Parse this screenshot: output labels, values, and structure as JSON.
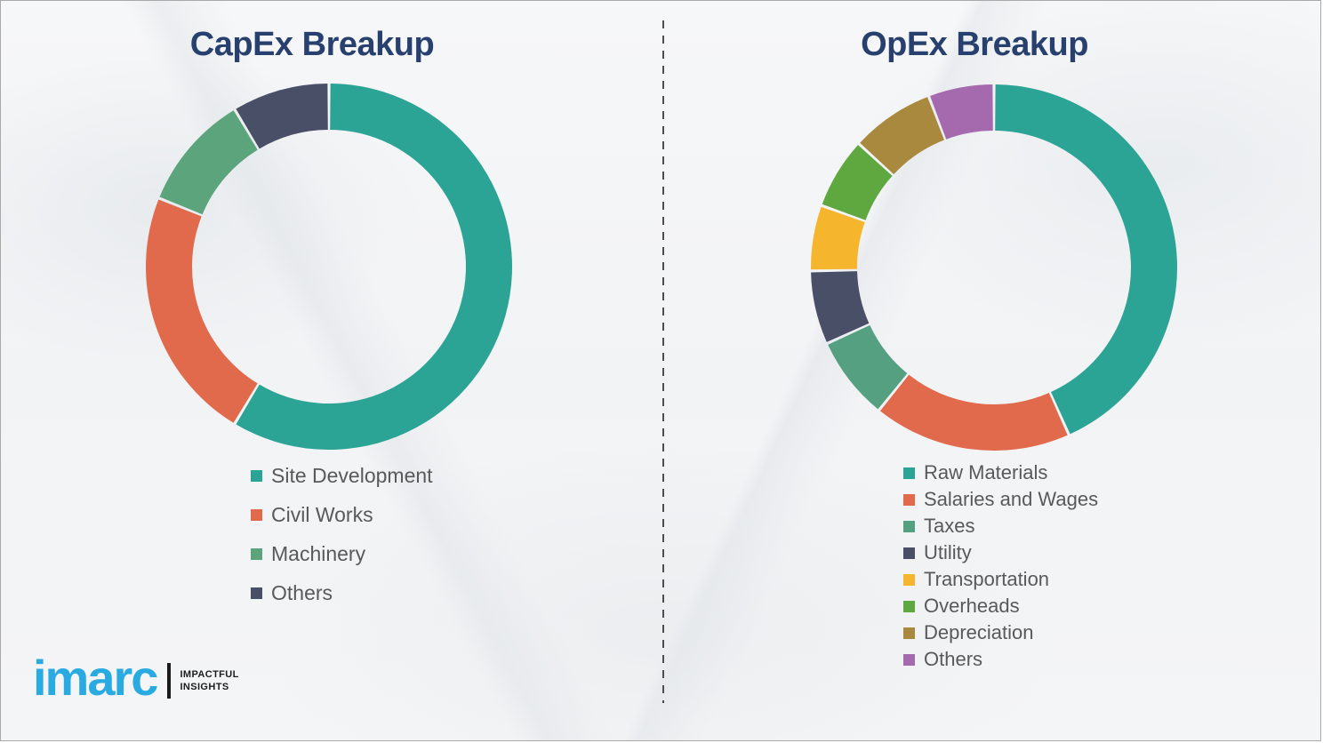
{
  "chart_data": [
    {
      "type": "pie",
      "variant": "donut",
      "title": "CapEx Breakup",
      "labels": [
        "Site Development",
        "Civil Works",
        "Machinery",
        "Others"
      ],
      "values": [
        58.6,
        22.5,
        10.3,
        8.6
      ],
      "colors": [
        "#2ba495",
        "#e06a4b",
        "#5ba47c",
        "#4a4f68"
      ],
      "start_angle_deg": 0,
      "direction": "clockwise",
      "data_labels": false,
      "legend_position": "below-left"
    },
    {
      "type": "pie",
      "variant": "donut",
      "title": "OpEx Breakup",
      "labels": [
        "Raw Materials",
        "Salaries and Wages",
        "Taxes",
        "Utility",
        "Transportation",
        "Overheads",
        "Depreciation",
        "Others"
      ],
      "values": [
        43.3,
        17.5,
        7.4,
        6.5,
        5.8,
        6.3,
        7.4,
        5.8
      ],
      "colors": [
        "#2ba495",
        "#e06a4b",
        "#55a081",
        "#4a4f68",
        "#f5b62e",
        "#5fa83f",
        "#a8893e",
        "#a46aad"
      ],
      "start_angle_deg": 0,
      "direction": "clockwise",
      "data_labels": false,
      "legend_position": "below-left"
    }
  ],
  "branding": {
    "logo_text": "imarc",
    "tagline_line1": "IMPACTFUL",
    "tagline_line2": "INSIGHTS",
    "logo_color": "#29abe2"
  },
  "style": {
    "title_color": "#27406e",
    "legend_text_color": "#595959",
    "divider_color": "#4d4d4d",
    "background_color": "#f3f4f6"
  }
}
